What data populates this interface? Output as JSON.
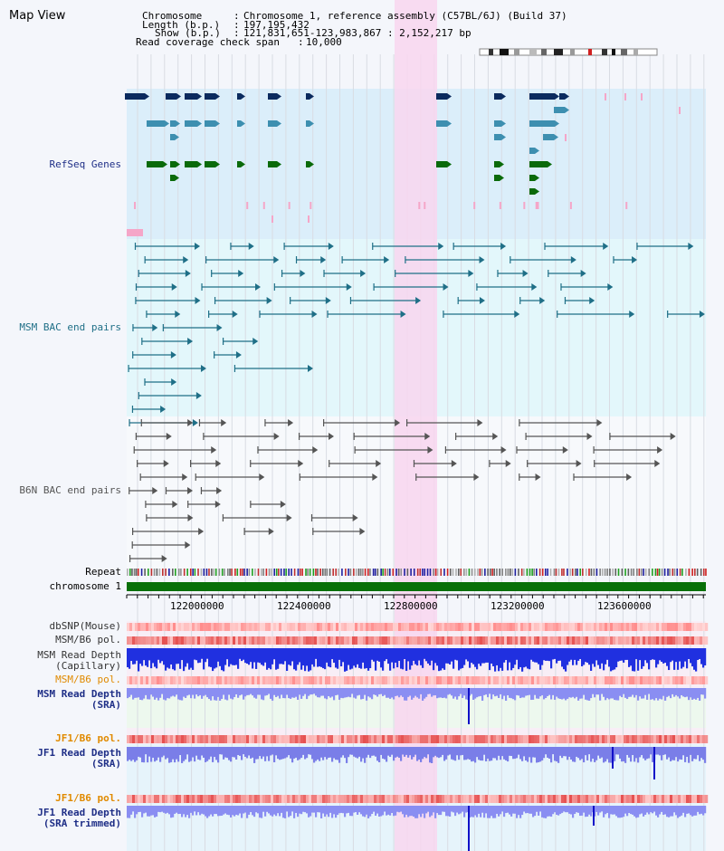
{
  "title": "Map View",
  "header": {
    "chromosome_key": "Chromosome",
    "chromosome_val": "Chromosome 1, reference assembly (C57BL/6J) (Build 37)",
    "length_key": "Length (b.p.)",
    "length_val": "197,195,432",
    "show_key": "Show (b.p.)",
    "show_val": "121,831,651-123,983,867 : 2,152,217 bp",
    "coverage_key": "Read coverage check span",
    "coverage_val": "10,000"
  },
  "tracks": {
    "refseq": "RefSeq Genes",
    "msm_bac": "MSM BAC end pairs",
    "b6n_bac": "B6N BAC end pairs",
    "repeat": "Repeat",
    "chromosome": "chromosome 1",
    "dbsnp": "dbSNP(Mouse)",
    "msm_b6_pol_1": "MSM/B6 pol.",
    "msm_read_depth_cap_1": "MSM Read Depth",
    "msm_read_depth_cap_2": "(Capillary)",
    "msm_b6_pol_2": "MSM/B6 pol.",
    "msm_read_depth_sra_1": "MSM Read Depth",
    "msm_read_depth_sra_2": "(SRA)",
    "jf1_b6_pol_1": "JF1/B6 pol.",
    "jf1_read_depth_sra_1": "JF1 Read Depth",
    "jf1_read_depth_sra_2": "(SRA)",
    "jf1_b6_pol_2": "JF1/B6 pol.",
    "jf1_read_depth_trim_1": "JF1 Read Depth",
    "jf1_read_depth_trim_2": "(SRA trimmed)"
  },
  "axis_ticks": [
    "122000000",
    "122400000",
    "122800000",
    "123200000",
    "123600000"
  ],
  "colors": {
    "navy": "#1f2f87",
    "orange": "#e08a00",
    "highlight": "#f8d6ee",
    "gene_dark": "#0b2a5e",
    "gene_mid": "#3d8fb0",
    "gene_green": "#0a6a0a",
    "chrom_green": "#087008"
  }
}
